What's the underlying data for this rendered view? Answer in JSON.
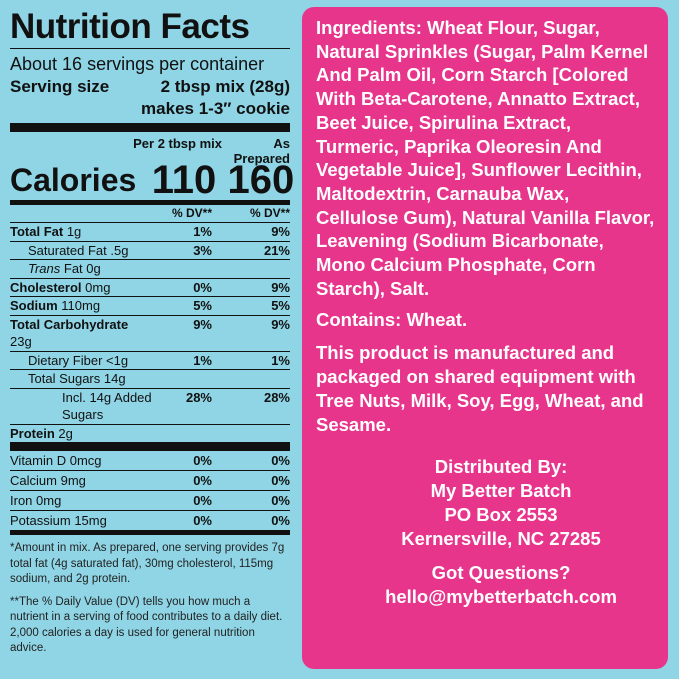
{
  "nutrition": {
    "title": "Nutrition Facts",
    "servings": "About 16 servings per container",
    "serving_size_label": "Serving size",
    "serving_size": "2 tbsp mix (28g)",
    "serving_note": "makes 1-3″ cookie",
    "column_headers": [
      "Per 2 tbsp mix",
      "As Prepared"
    ],
    "calories_label": "Calories",
    "calories": [
      "110",
      "160"
    ],
    "dv_headers": [
      "% DV**",
      "% DV**"
    ],
    "rows": [
      {
        "name": "Total Fat",
        "amount": "1g",
        "dv": [
          "1%",
          "9%"
        ]
      },
      {
        "name": "Saturated Fat",
        "amount": ".5g",
        "dv": [
          "3%",
          "21%"
        ]
      },
      {
        "name": "Trans",
        "amount": "Fat 0g"
      },
      {
        "name": "Cholesterol",
        "amount": "0mg",
        "dv": [
          "0%",
          "9%"
        ]
      },
      {
        "name": "Sodium",
        "amount": "110mg",
        "dv": [
          "5%",
          "5%"
        ]
      },
      {
        "name": "Total Carbohydrate",
        "amount": "23g",
        "dv": [
          "9%",
          "9%"
        ]
      },
      {
        "name": "Dietary Fiber",
        "amount": "<1g",
        "dv": [
          "1%",
          "1%"
        ]
      },
      {
        "name": "Total Sugars",
        "amount": "14g"
      },
      {
        "name": "Incl. 14g Added Sugars",
        "dv": [
          "28%",
          "28%"
        ]
      },
      {
        "name": "Protein",
        "amount": "2g"
      }
    ],
    "vitamins": [
      {
        "name": "Vitamin D",
        "amount": "0mcg",
        "dv": [
          "0%",
          "0%"
        ]
      },
      {
        "name": "Calcium",
        "amount": "9mg",
        "dv": [
          "0%",
          "0%"
        ]
      },
      {
        "name": "Iron",
        "amount": "0mg",
        "dv": [
          "0%",
          "0%"
        ]
      },
      {
        "name": "Potassium",
        "amount": "15mg",
        "dv": [
          "0%",
          "0%"
        ]
      }
    ],
    "footnotes": [
      "*Amount in mix. As prepared, one serving provides 7g total fat (4g saturated fat), 30mg cholesterol, 115mg sodium, and 2g protein.",
      "**The % Daily Value (DV) tells you how much a nutrient in a serving of food contributes to a daily diet. 2,000 calories a day is used for general nutrition advice."
    ]
  },
  "panel": {
    "ingredients_label": "Ingredients:",
    "ingredients": "Wheat Flour, Sugar, Natural Sprinkles (Sugar, Palm Kernel And Palm Oil, Corn Starch [Colored With Beta-Carotene, Annatto Extract, Beet Juice, Spirulina Extract, Turmeric, Paprika Oleoresin And Vegetable Juice], Sunflower Lecithin, Maltodextrin, Carnauba Wax, Cellulose Gum), Natural Vanilla Flavor, Leavening (Sodium Bicarbonate, Mono Calcium Phosphate, Corn Starch), Salt.",
    "contains_label": "Contains:",
    "contains": "Wheat.",
    "allergen": "This product is manufactured and packaged on shared equipment with Tree Nuts, Milk, Soy, Egg, Wheat, and Sesame.",
    "distributor": [
      "Distributed By:",
      "My Better Batch",
      "PO Box 2553",
      "Kernersville, NC 27285"
    ],
    "questions": "Got Questions?",
    "email": "hello@mybetterbatch.com"
  }
}
